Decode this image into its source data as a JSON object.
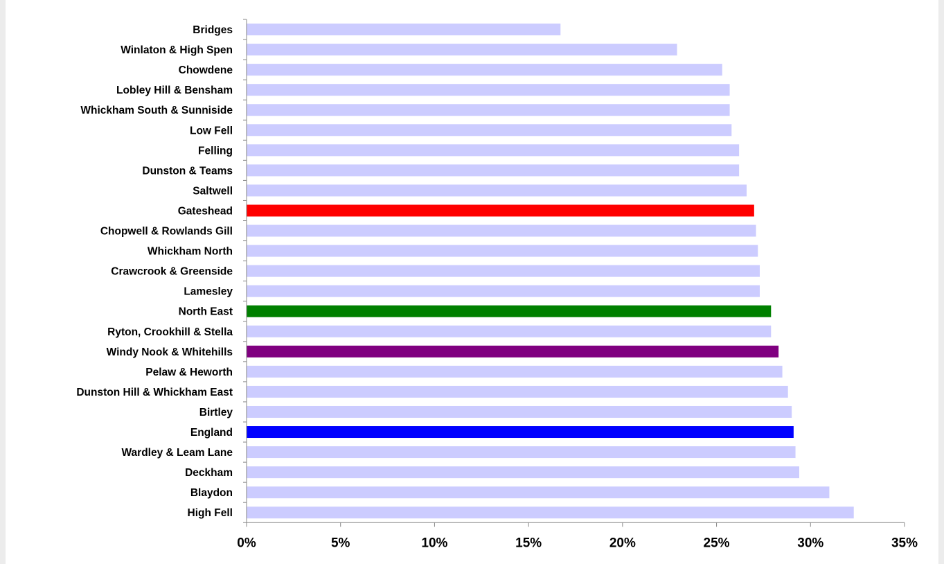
{
  "chart_data": {
    "type": "bar",
    "orientation": "horizontal",
    "categories": [
      "Bridges",
      "Winlaton & High Spen",
      "Chowdene",
      "Lobley Hill & Bensham",
      "Whickham South & Sunniside",
      "Low Fell",
      "Felling",
      "Dunston & Teams",
      "Saltwell",
      "Gateshead",
      "Chopwell & Rowlands Gill",
      "Whickham North",
      "Crawcrook & Greenside",
      "Lamesley",
      "North East",
      "Ryton, Crookhill & Stella",
      "Windy Nook & Whitehills",
      "Pelaw & Heworth",
      "Dunston Hill & Whickham East",
      "Birtley",
      "England",
      "Wardley & Leam Lane",
      "Deckham",
      "Blaydon",
      "High Fell"
    ],
    "values": [
      16.7,
      22.9,
      25.3,
      25.7,
      25.7,
      25.8,
      26.2,
      26.2,
      26.6,
      27.0,
      27.1,
      27.2,
      27.3,
      27.3,
      27.9,
      27.9,
      28.3,
      28.5,
      28.8,
      29.0,
      29.1,
      29.2,
      29.4,
      31.0,
      32.3
    ],
    "colors": [
      "#ccccff",
      "#ccccff",
      "#ccccff",
      "#ccccff",
      "#ccccff",
      "#ccccff",
      "#ccccff",
      "#ccccff",
      "#ccccff",
      "#ff0000",
      "#ccccff",
      "#ccccff",
      "#ccccff",
      "#ccccff",
      "#008000",
      "#ccccff",
      "#800080",
      "#ccccff",
      "#ccccff",
      "#ccccff",
      "#0000ff",
      "#ccccff",
      "#ccccff",
      "#ccccff",
      "#ccccff"
    ],
    "xlim": [
      0,
      35
    ],
    "xticks": [
      0,
      5,
      10,
      15,
      20,
      25,
      30,
      35
    ],
    "tick_format": "percent",
    "grid": false,
    "legend": "none",
    "title": "",
    "xlabel": "",
    "ylabel": ""
  }
}
